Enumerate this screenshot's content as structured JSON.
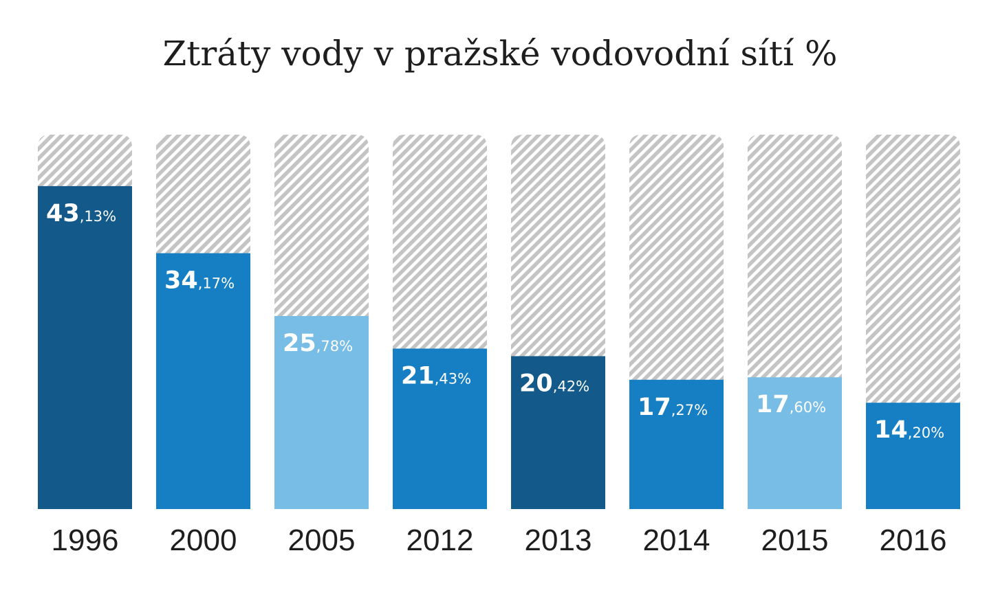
{
  "chart_data": {
    "type": "bar",
    "title": "Ztráty vody v pražské vodovodní sítí %",
    "xlabel": "",
    "ylabel": "",
    "ylim": [
      0,
      50
    ],
    "grid": false,
    "categories": [
      "1996",
      "2000",
      "2005",
      "2012",
      "2013",
      "2014",
      "2015",
      "2016"
    ],
    "values": [
      43.13,
      34.17,
      25.78,
      21.43,
      20.42,
      17.27,
      17.6,
      14.2
    ],
    "value_labels": [
      {
        "int": "43",
        "dec": ",13%"
      },
      {
        "int": "34",
        "dec": ",17%"
      },
      {
        "int": "25",
        "dec": ",78%"
      },
      {
        "int": "21",
        "dec": ",43%"
      },
      {
        "int": "20",
        "dec": ",42%"
      },
      {
        "int": "17",
        "dec": ",27%"
      },
      {
        "int": "17",
        "dec": ",60%"
      },
      {
        "int": "14",
        "dec": ",20%"
      }
    ],
    "bar_colors": [
      "#135a8a",
      "#167fc4",
      "#78bde6",
      "#167fc4",
      "#135a8a",
      "#167fc4",
      "#78bde6",
      "#167fc4"
    ],
    "background_hatch_color": "#c4c4c4"
  }
}
